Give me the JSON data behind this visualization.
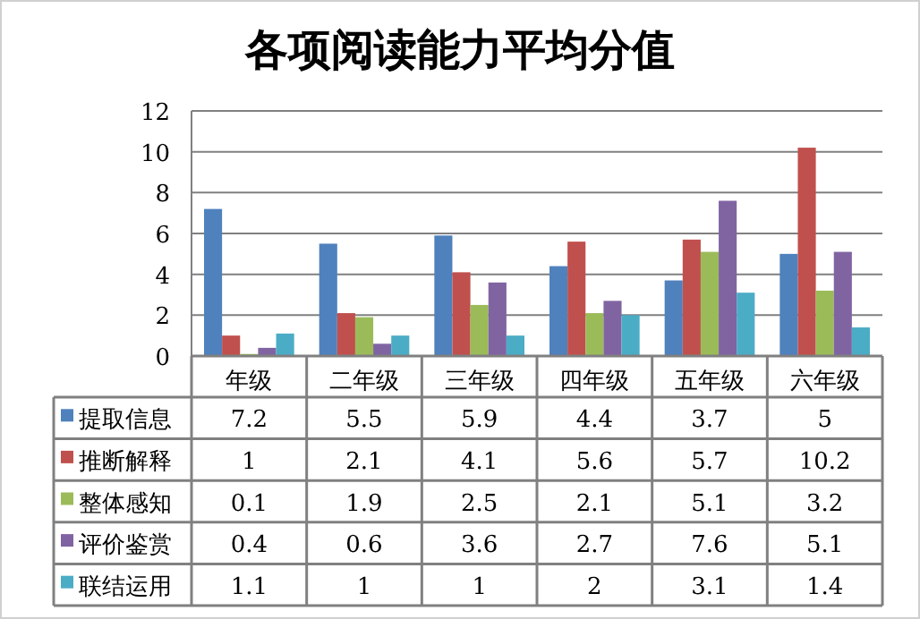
{
  "chart_data": {
    "type": "bar",
    "title": "各项阅读能力平均分值",
    "categories": [
      "年级",
      "二年级",
      "三年级",
      "四年级",
      "五年级",
      "六年级"
    ],
    "series": [
      {
        "name": "提取信息",
        "color": "#4f81bd",
        "values": [
          7.2,
          5.5,
          5.9,
          4.4,
          3.7,
          5
        ]
      },
      {
        "name": "推断解释",
        "color": "#c0504d",
        "values": [
          1,
          2.1,
          4.1,
          5.6,
          5.7,
          10.2
        ]
      },
      {
        "name": "整体感知",
        "color": "#9bbb59",
        "values": [
          0.1,
          1.9,
          2.5,
          2.1,
          5.1,
          3.2
        ]
      },
      {
        "name": "评价鉴赏",
        "color": "#8064a2",
        "values": [
          0.4,
          0.6,
          3.6,
          2.7,
          7.6,
          5.1
        ]
      },
      {
        "name": "联结运用",
        "color": "#4bacc6",
        "values": [
          1.1,
          1,
          1,
          2,
          3.1,
          1.4
        ]
      }
    ],
    "ylim": [
      0,
      12
    ],
    "yticks": [
      0,
      2,
      4,
      6,
      8,
      10,
      12
    ],
    "grid": "y",
    "data_labels": true,
    "legend": "bottom"
  }
}
